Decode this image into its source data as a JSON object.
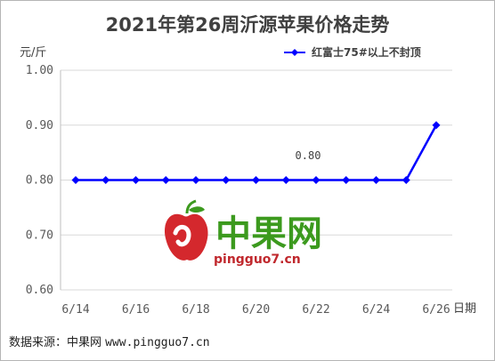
{
  "chart_data": {
    "type": "line",
    "title": "2021年第26周沂源苹果价格走势",
    "ylabel": "元/斤",
    "xlabel": "日期",
    "ylim": [
      0.6,
      1.0
    ],
    "yticks": [
      "1.00",
      "0.90",
      "0.80",
      "0.70",
      "0.60"
    ],
    "x": [
      "6/14",
      "6/15",
      "6/16",
      "6/17",
      "6/18",
      "6/19",
      "6/20",
      "6/21",
      "6/22",
      "6/23",
      "6/24",
      "6/25",
      "6/26"
    ],
    "xtick_labels": [
      "6/14",
      "6/16",
      "6/18",
      "6/20",
      "6/22",
      "6/24",
      "6/26"
    ],
    "series": [
      {
        "name": "红富士75#以上不封顶",
        "values": [
          0.8,
          0.8,
          0.8,
          0.8,
          0.8,
          0.8,
          0.8,
          0.8,
          0.8,
          0.8,
          0.8,
          0.8,
          0.9
        ],
        "color": "#0000ff"
      }
    ],
    "annotations": [
      "0.80"
    ],
    "legend_position": "top-right",
    "grid": "horizontal"
  },
  "watermark": {
    "brand": "中果网",
    "url": "pingguo7.cn"
  },
  "footer": {
    "source_label": "数据来源：中果网",
    "source_url": "www.pingguo7.cn"
  }
}
